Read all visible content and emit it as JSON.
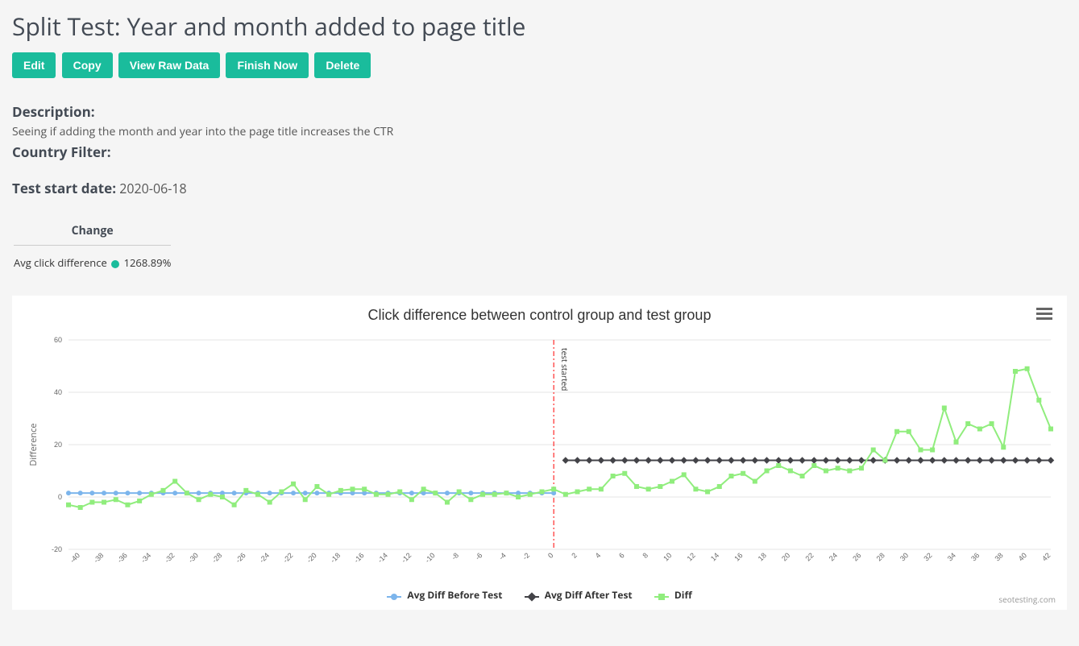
{
  "page": {
    "title": "Split Test: Year and month added to page title"
  },
  "toolbar": {
    "edit": "Edit",
    "copy": "Copy",
    "view_raw": "View Raw Data",
    "finish_now": "Finish Now",
    "delete": "Delete"
  },
  "meta": {
    "description_label": "Description:",
    "description_text": "Seeing if adding the month and year into the page title increases the CTR",
    "country_filter_label": "Country Filter:",
    "country_filter_value": "",
    "start_date_label": "Test start date:",
    "start_date_value": "2020-06-18"
  },
  "summary": {
    "change_header": "Change",
    "row_label": "Avg click difference",
    "value": "1268.89%",
    "dot_color": "#1abc9c"
  },
  "chart": {
    "title": "Click difference between control group and test group",
    "y_axis_title": "Difference",
    "annotation": "test started",
    "watermark": "seotesting.com",
    "legend": {
      "before": "Avg Diff Before Test",
      "after": "Avg Diff After Test",
      "diff": "Diff"
    },
    "colors": {
      "before": "#7cb5ec",
      "after": "#434348",
      "diff": "#90ed7d",
      "grid": "#e6e6e6",
      "vline": "#ff0000",
      "background": "#ffffff"
    },
    "ylim": [
      -20,
      60
    ],
    "ytick_step": 20,
    "x_start": -41,
    "x_end": 42,
    "x_tick_step": 2,
    "x_tick_first": -40,
    "avg_before": 1.5,
    "avg_after": 14,
    "diff_values": [
      -3,
      -4,
      -2,
      -2,
      -1,
      -3,
      -1.5,
      1,
      2.5,
      6,
      1.5,
      -1,
      1,
      0,
      -3,
      2.5,
      1,
      -2,
      2,
      5,
      -1,
      4,
      1,
      2.5,
      3,
      3,
      1,
      1,
      2,
      -1,
      3,
      1.5,
      -2,
      2,
      -1,
      1,
      1,
      1.5,
      0,
      1,
      2,
      3,
      1,
      2,
      3,
      3,
      8,
      9,
      4,
      3,
      4,
      6,
      8.5,
      3,
      2,
      4,
      8,
      9,
      6,
      10,
      12,
      10,
      8,
      12,
      10,
      11,
      10,
      11,
      18,
      14,
      25,
      25,
      18,
      18,
      34,
      21,
      28,
      26,
      28,
      19,
      48,
      49,
      37,
      26
    ]
  }
}
